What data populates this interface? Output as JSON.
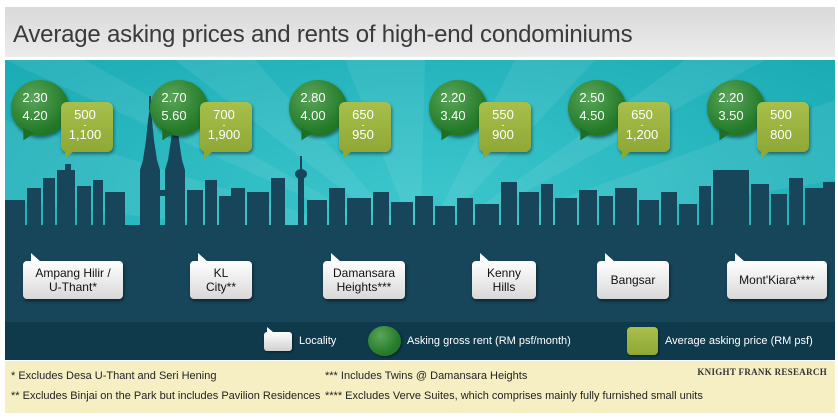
{
  "title": "Average asking prices and rents of high-end condominiums",
  "colors": {
    "sky": "#1fb5bd",
    "skyline": "#17465a",
    "rent_bubble": "#237a28",
    "price_box": "#9ab53e",
    "footer_bg": "#f6efc4"
  },
  "chart_data": {
    "type": "table",
    "title": "Average asking prices and rents of high-end condominiums",
    "columns": [
      "Locality",
      "Asking gross rent (RM psf/month)",
      "Average asking price (RM psf)"
    ],
    "rows": [
      {
        "locality": "Ampang Hilir / U-Thant*",
        "rent_min": 2.3,
        "rent_max": 4.2,
        "price_min": 500,
        "price_max": 1100
      },
      {
        "locality": "KL City**",
        "rent_min": 2.7,
        "rent_max": 5.6,
        "price_min": 700,
        "price_max": 1900
      },
      {
        "locality": "Damansara Heights***",
        "rent_min": 2.8,
        "rent_max": 4.0,
        "price_min": 650,
        "price_max": 950
      },
      {
        "locality": "Kenny Hills",
        "rent_min": 2.2,
        "rent_max": 3.4,
        "price_min": 550,
        "price_max": 900
      },
      {
        "locality": "Bangsar",
        "rent_min": 2.5,
        "rent_max": 4.5,
        "price_min": 650,
        "price_max": 1200
      },
      {
        "locality": "Mont'Kiara****",
        "rent_min": 2.2,
        "rent_max": 3.5,
        "price_min": 500,
        "price_max": 800
      }
    ]
  },
  "markers": [
    {
      "rent": [
        "2.30",
        "4.20"
      ],
      "price": [
        "500",
        "1,100"
      ],
      "loc": [
        "Ampang Hilir /",
        "U-Thant*"
      ]
    },
    {
      "rent": [
        "2.70",
        "5.60"
      ],
      "price": [
        "700",
        "1,900"
      ],
      "loc": [
        "KL",
        "City**"
      ]
    },
    {
      "rent": [
        "2.80",
        "4.00"
      ],
      "price": [
        "650",
        "950"
      ],
      "loc": [
        "Damansara",
        "Heights***"
      ]
    },
    {
      "rent": [
        "2.20",
        "3.40"
      ],
      "price": [
        "550",
        "900"
      ],
      "loc": [
        "Kenny",
        "Hills"
      ]
    },
    {
      "rent": [
        "2.50",
        "4.50"
      ],
      "price": [
        "650",
        "1,200"
      ],
      "loc": [
        "Bangsar"
      ]
    },
    {
      "rent": [
        "2.20",
        "3.50"
      ],
      "price": [
        "500",
        "800"
      ],
      "loc": [
        "Mont'Kiara****"
      ]
    }
  ],
  "range_separator": "-",
  "legend": {
    "locality": "Locality",
    "rent": "Asking gross rent (RM psf/month)",
    "price": "Average asking price (RM psf)"
  },
  "footnotes": {
    "n1": "* Excludes Desa U-Thant and Seri Hening",
    "n2": "** Excludes Binjai on the Park but includes Pavilion Residences",
    "n3": "*** Includes Twins @ Damansara Heights",
    "n4": "**** Excludes Verve Suites, which comprises mainly fully furnished small units"
  },
  "source": "KNIGHT FRANK RESEARCH"
}
